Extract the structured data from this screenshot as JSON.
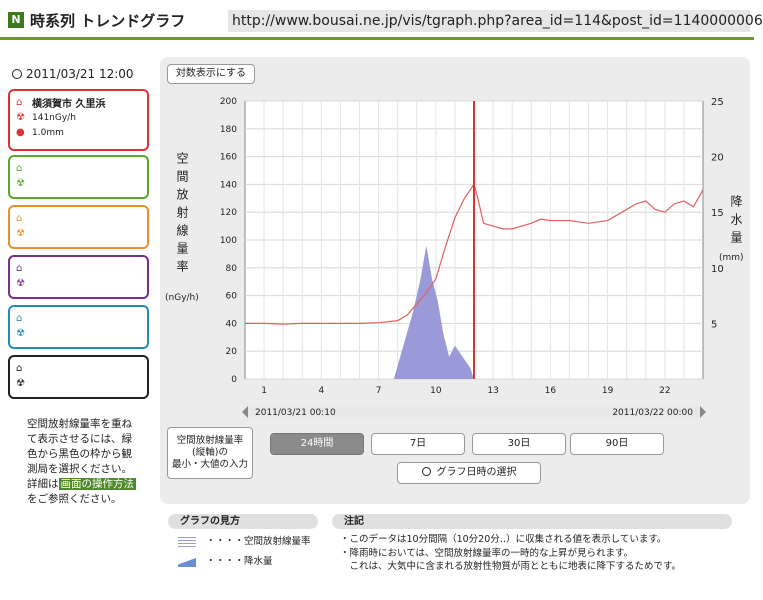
{
  "header": {
    "logo": "N",
    "title": "時系列 トレンドグラフ",
    "url": "http://www.bousai.ne.jp/vis/tgraph.php?area_id=114&post_id=1140000006"
  },
  "sidebar": {
    "datetime": "2011/03/21 12:00",
    "stations": [
      {
        "name": "横須賀市 久里浜",
        "dose": "141nGy/h",
        "rain": "1.0mm",
        "color": "#e03030"
      },
      {
        "name": "",
        "dose": "",
        "rain": "",
        "color": "#56a82a"
      },
      {
        "name": "",
        "dose": "",
        "rain": "",
        "color": "#e8902a"
      },
      {
        "name": "",
        "dose": "",
        "rain": "",
        "color": "#7a2c8f"
      },
      {
        "name": "",
        "dose": "",
        "rain": "",
        "color": "#1f8fb8"
      },
      {
        "name": "",
        "dose": "",
        "rain": "",
        "color": "#222222"
      }
    ],
    "help_lines": [
      "空間放射線量率を重ね",
      "て表示させるには、緑",
      "色から黒色の枠から観",
      "測局を選択ください。"
    ],
    "help_prefix": "詳細は",
    "help_link": "画面の操作方法",
    "help_suffix": "をご参照ください。"
  },
  "controls": {
    "log_button": "対数表示にする",
    "range_button_lines": [
      "空間放射線量率",
      "(縦軸)の",
      "最小・大値の入力"
    ],
    "tabs": [
      "24時間",
      "7日",
      "30日",
      "90日"
    ],
    "active_tab": "24時間",
    "date_select": "グラフ日時の選択"
  },
  "chart_data": {
    "type": "line",
    "left_axis_label": "空間放射線量率",
    "left_axis_unit": "(nGy/h)",
    "right_axis_label": "降水量",
    "right_axis_unit": "(mm)",
    "ylim": [
      0,
      200
    ],
    "yticks": [
      0,
      20,
      40,
      60,
      80,
      100,
      120,
      140,
      160,
      180,
      200
    ],
    "y2lim": [
      0,
      25
    ],
    "y2ticks": [
      5,
      10,
      15,
      20,
      25
    ],
    "x_tick_labels": [
      "1",
      "4",
      "7",
      "10",
      "13",
      "16",
      "19",
      "22"
    ],
    "x_tick_hours": [
      1,
      4,
      7,
      10,
      13,
      16,
      19,
      22
    ],
    "xlim": [
      0,
      24
    ],
    "x_start_label": "2011/03/21 00:10",
    "x_end_label": "2011/03/22 00:00",
    "current_hour": 12,
    "dose_series": [
      [
        0,
        40
      ],
      [
        1,
        40
      ],
      [
        2,
        39.5
      ],
      [
        3,
        40
      ],
      [
        4,
        40
      ],
      [
        5,
        40
      ],
      [
        6,
        40
      ],
      [
        7,
        40.5
      ],
      [
        8,
        42
      ],
      [
        8.5,
        46
      ],
      [
        9,
        54
      ],
      [
        9.5,
        62
      ],
      [
        10,
        72
      ],
      [
        10.5,
        95
      ],
      [
        11,
        116
      ],
      [
        11.5,
        130
      ],
      [
        12,
        140
      ],
      [
        12.2,
        130
      ],
      [
        12.5,
        112
      ],
      [
        13,
        110
      ],
      [
        13.5,
        108
      ],
      [
        14,
        108
      ],
      [
        15,
        112
      ],
      [
        15.5,
        115
      ],
      [
        16,
        114
      ],
      [
        17,
        114
      ],
      [
        17.5,
        113
      ],
      [
        18,
        112
      ],
      [
        19,
        114
      ],
      [
        20,
        122
      ],
      [
        20.5,
        126
      ],
      [
        21,
        128
      ],
      [
        21.5,
        122
      ],
      [
        22,
        120
      ],
      [
        22.5,
        126
      ],
      [
        23,
        128
      ],
      [
        23.5,
        124
      ],
      [
        24,
        136
      ]
    ],
    "rain_series": [
      [
        7.8,
        0
      ],
      [
        8.3,
        3
      ],
      [
        8.8,
        6
      ],
      [
        9.2,
        9
      ],
      [
        9.5,
        12
      ],
      [
        9.8,
        9
      ],
      [
        10.1,
        7
      ],
      [
        10.4,
        4
      ],
      [
        10.7,
        2
      ],
      [
        11,
        3
      ],
      [
        11.4,
        2
      ],
      [
        11.8,
        1
      ],
      [
        12,
        0
      ]
    ],
    "colors": {
      "dose": "#e06060",
      "rain": "#9a9ad8",
      "marker": "#e03030"
    }
  },
  "legend": {
    "title": "グラフの見方",
    "items": [
      "・・・・空間放射線量率",
      "・・・・降水量"
    ]
  },
  "notes": {
    "title": "注記",
    "lines": [
      "・このデータは10分間隔（10分20分‥）に収集される値を表示しています。",
      "・降雨時においては、空間放射線量率の一時的な上昇が見られます。",
      "　これは、大気中に含まれる放射性物質が雨とともに地表に降下するためです。"
    ]
  }
}
